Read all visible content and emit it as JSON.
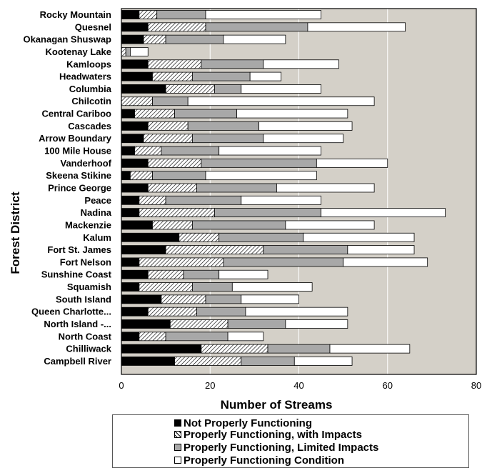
{
  "chart_data": {
    "type": "bar",
    "orientation": "horizontal",
    "stacked": true,
    "ylabel": "Forest District",
    "xlabel": "Number of Streams",
    "xlim": [
      0,
      80
    ],
    "xticks": [
      "0",
      "20",
      "40",
      "60",
      "80"
    ],
    "grid": "vertical lines",
    "legend_position": "bottom",
    "categories": [
      "Rocky Mountain",
      "Quesnel",
      "Okanagan Shuswap",
      "Kootenay Lake",
      "Kamloops",
      "Headwaters",
      "Columbia",
      "Chilcotin",
      "Central Cariboo",
      "Cascades",
      "Arrow Boundary",
      "100 Mile House",
      "Vanderhoof",
      "Skeena Stikine",
      "Prince George",
      "Peace",
      "Nadina",
      "Mackenzie",
      "Kalum",
      "Fort St. James",
      "Fort Nelson",
      "Sunshine Coast",
      "Squamish",
      "South Island",
      "Queen Charlotte...",
      "North Island -...",
      "North Coast",
      "Chilliwack",
      "Campbell River"
    ],
    "series": [
      {
        "name": "Not Properly Functioning",
        "color": "#000000",
        "values": [
          4,
          6,
          5,
          0,
          6,
          7,
          10,
          0,
          3,
          6,
          5,
          3,
          6,
          2,
          6,
          4,
          4,
          7,
          13,
          10,
          4,
          6,
          4,
          9,
          6,
          11,
          4,
          18,
          12
        ]
      },
      {
        "name": "Properly Functioning, with Impacts",
        "color": "#ffffff",
        "values": [
          4,
          13,
          5,
          1,
          12,
          9,
          11,
          7,
          9,
          9,
          11,
          6,
          12,
          5,
          11,
          6,
          17,
          9,
          9,
          22,
          19,
          8,
          12,
          10,
          11,
          13,
          6,
          15,
          15
        ]
      },
      {
        "name": "Properly Functioning, Limited Impacts",
        "color": "#a8a8a8",
        "values": [
          11,
          23,
          13,
          1,
          14,
          13,
          6,
          8,
          14,
          16,
          16,
          13,
          26,
          12,
          18,
          17,
          24,
          21,
          19,
          19,
          27,
          8,
          9,
          8,
          11,
          13,
          14,
          14,
          12
        ]
      },
      {
        "name": "Properly Functioning Condition",
        "color": "#ffffff",
        "values": [
          26,
          22,
          14,
          4,
          17,
          7,
          18,
          42,
          25,
          21,
          18,
          23,
          16,
          25,
          22,
          18,
          28,
          20,
          25,
          15,
          19,
          11,
          18,
          13,
          23,
          14,
          8,
          18,
          13
        ]
      }
    ]
  }
}
